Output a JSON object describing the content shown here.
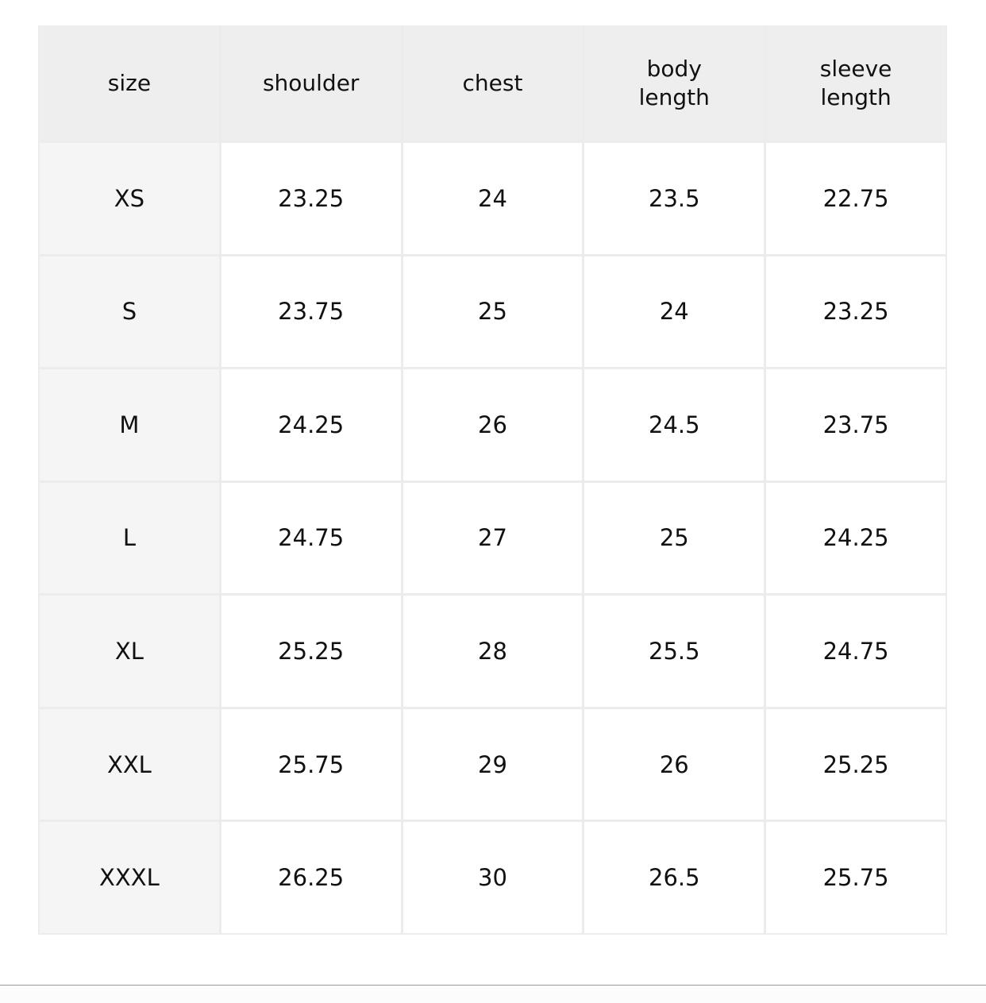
{
  "table": {
    "headers": [
      "size",
      "shoulder",
      "chest",
      "body\nlength",
      "sleeve\nlength"
    ],
    "rows": [
      [
        "XS",
        "23.25",
        "24",
        "23.5",
        "22.75"
      ],
      [
        "S",
        "23.75",
        "25",
        "24",
        "23.25"
      ],
      [
        "M",
        "24.25",
        "26",
        "24.5",
        "23.75"
      ],
      [
        "L",
        "24.75",
        "27",
        "25",
        "24.25"
      ],
      [
        "XL",
        "25.25",
        "28",
        "25.5",
        "24.75"
      ],
      [
        "XXL",
        "25.75",
        "29",
        "26",
        "25.25"
      ],
      [
        "XXXL",
        "26.25",
        "30",
        "26.5",
        "25.75"
      ]
    ]
  }
}
